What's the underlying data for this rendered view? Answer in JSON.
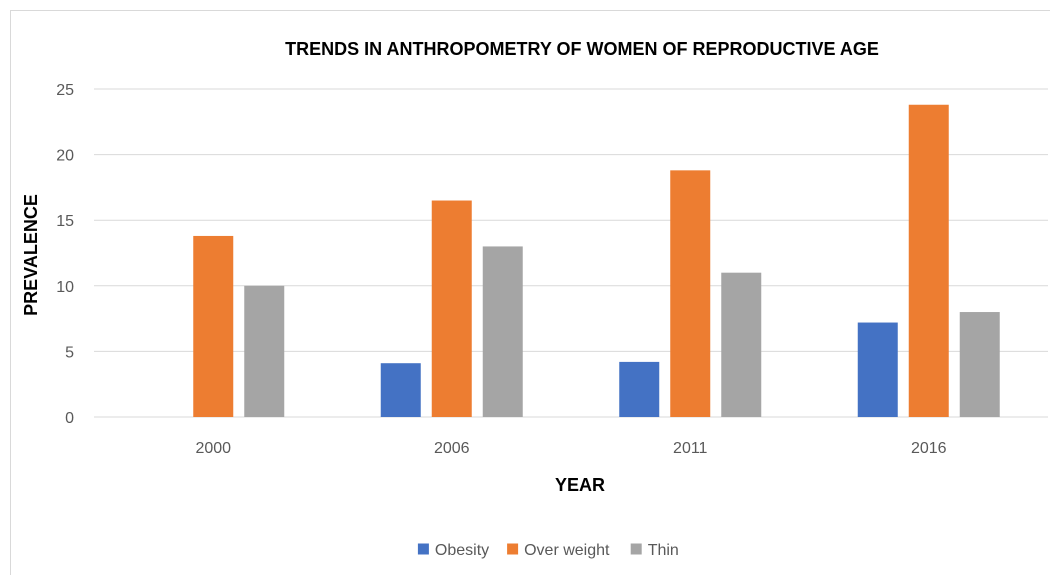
{
  "chart_data": {
    "type": "bar",
    "title": "TRENDS IN ANTHROPOMETRY OF WOMEN OF REPRODUCTIVE AGE",
    "xlabel": "YEAR",
    "ylabel": "PREVALENCE",
    "categories": [
      "2000",
      "2006",
      "2011",
      "2016"
    ],
    "series": [
      {
        "name": "Obesity",
        "color": "#4472c4",
        "values": [
          null,
          4.1,
          4.2,
          7.2
        ]
      },
      {
        "name": "Over weight",
        "color": "#ed7d31",
        "values": [
          13.8,
          16.5,
          18.8,
          23.8
        ]
      },
      {
        "name": "Thin",
        "color": "#a5a5a5",
        "values": [
          10,
          13,
          11,
          8
        ]
      }
    ],
    "ylim": [
      0,
      25
    ],
    "yticks": [
      "0",
      "5",
      "10",
      "15",
      "20",
      "25"
    ],
    "grid": true,
    "legend": "bottom"
  }
}
